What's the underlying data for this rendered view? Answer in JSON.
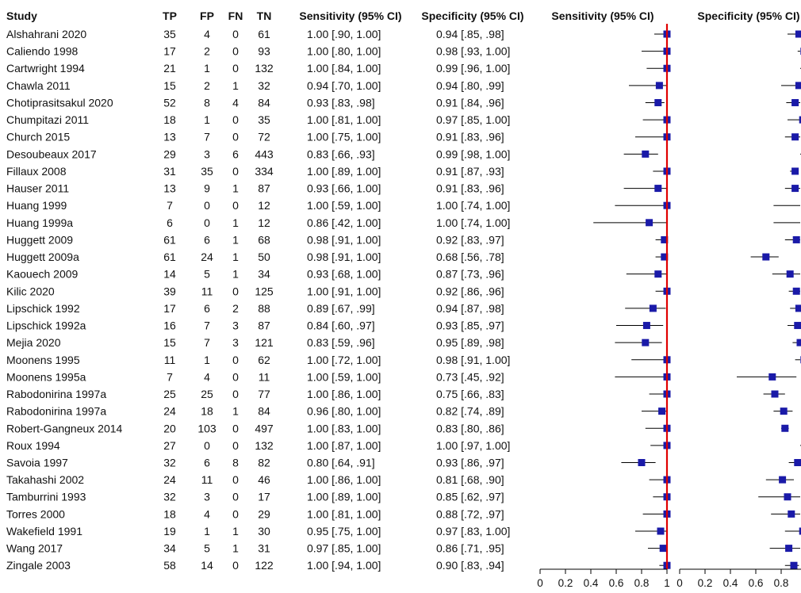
{
  "colors": {
    "marker": "#1a1aa8",
    "ci_line": "#000000",
    "ref_line": "#e00000",
    "axis": "#000000",
    "text": "#111111"
  },
  "table": {
    "headers": [
      "Study",
      "TP",
      "FP",
      "FN",
      "TN",
      "Sensitivity (95% CI)",
      "Specificity (95% CI)"
    ],
    "plot_headers": [
      "Sensitivity (95% CI)",
      "Specificity (95% CI)"
    ],
    "rows": [
      {
        "study": "Alshahrani 2020",
        "tp": "35",
        "fp": "4",
        "fn": "0",
        "tn": "61",
        "sens": "1.00 [.90, 1.00]",
        "spec": "0.94 [.85, .98]"
      },
      {
        "study": "Caliendo 1998",
        "tp": "17",
        "fp": "2",
        "fn": "0",
        "tn": "93",
        "sens": "1.00 [.80, 1.00]",
        "spec": "0.98 [.93, 1.00]"
      },
      {
        "study": "Cartwright 1994",
        "tp": "21",
        "fp": "1",
        "fn": "0",
        "tn": "132",
        "sens": "1.00 [.84, 1.00]",
        "spec": "0.99 [.96, 1.00]"
      },
      {
        "study": "Chawla 2011",
        "tp": "15",
        "fp": "2",
        "fn": "1",
        "tn": "32",
        "sens": "0.94 [.70, 1.00]",
        "spec": "0.94 [.80, .99]"
      },
      {
        "study": "Chotiprasitsakul 2020",
        "tp": "52",
        "fp": "8",
        "fn": "4",
        "tn": "84",
        "sens": "0.93 [.83, .98]",
        "spec": "0.91 [.84, .96]"
      },
      {
        "study": "Chumpitazi 2011",
        "tp": "18",
        "fp": "1",
        "fn": "0",
        "tn": "35",
        "sens": "1.00 [.81, 1.00]",
        "spec": "0.97 [.85, 1.00]"
      },
      {
        "study": "Church 2015",
        "tp": "13",
        "fp": "7",
        "fn": "0",
        "tn": "72",
        "sens": "1.00 [.75, 1.00]",
        "spec": "0.91 [.83, .96]"
      },
      {
        "study": "Desoubeaux 2017",
        "tp": "29",
        "fp": "3",
        "fn": "6",
        "tn": "443",
        "sens": "0.83 [.66, .93]",
        "spec": "0.99 [.98, 1.00]"
      },
      {
        "study": "Fillaux 2008",
        "tp": "31",
        "fp": "35",
        "fn": "0",
        "tn": "334",
        "sens": "1.00 [.89, 1.00]",
        "spec": "0.91 [.87, .93]"
      },
      {
        "study": "Hauser 2011",
        "tp": "13",
        "fp": "9",
        "fn": "1",
        "tn": "87",
        "sens": "0.93 [.66, 1.00]",
        "spec": "0.91 [.83, .96]"
      },
      {
        "study": "Huang 1999",
        "tp": "7",
        "fp": "0",
        "fn": "0",
        "tn": "12",
        "sens": "1.00 [.59, 1.00]",
        "spec": "1.00 [.74, 1.00]"
      },
      {
        "study": "Huang 1999a",
        "tp": "6",
        "fp": "0",
        "fn": "1",
        "tn": "12",
        "sens": "0.86 [.42, 1.00]",
        "spec": "1.00 [.74, 1.00]"
      },
      {
        "study": "Huggett 2009",
        "tp": "61",
        "fp": "6",
        "fn": "1",
        "tn": "68",
        "sens": "0.98 [.91, 1.00]",
        "spec": "0.92 [.83, .97]"
      },
      {
        "study": "Huggett 2009a",
        "tp": "61",
        "fp": "24",
        "fn": "1",
        "tn": "50",
        "sens": "0.98 [.91, 1.00]",
        "spec": "0.68 [.56, .78]"
      },
      {
        "study": "Kaouech 2009",
        "tp": "14",
        "fp": "5",
        "fn": "1",
        "tn": "34",
        "sens": "0.93 [.68, 1.00]",
        "spec": "0.87 [.73, .96]"
      },
      {
        "study": "Kilic 2020",
        "tp": "39",
        "fp": "11",
        "fn": "0",
        "tn": "125",
        "sens": "1.00 [.91, 1.00]",
        "spec": "0.92 [.86, .96]"
      },
      {
        "study": "Lipschick 1992",
        "tp": "17",
        "fp": "6",
        "fn": "2",
        "tn": "88",
        "sens": "0.89 [.67, .99]",
        "spec": "0.94 [.87, .98]"
      },
      {
        "study": "Lipschick 1992a",
        "tp": "16",
        "fp": "7",
        "fn": "3",
        "tn": "87",
        "sens": "0.84 [.60, .97]",
        "spec": "0.93 [.85, .97]"
      },
      {
        "study": "Mejia 2020",
        "tp": "15",
        "fp": "7",
        "fn": "3",
        "tn": "121",
        "sens": "0.83 [.59, .96]",
        "spec": "0.95 [.89, .98]"
      },
      {
        "study": "Moonens 1995",
        "tp": "11",
        "fp": "1",
        "fn": "0",
        "tn": "62",
        "sens": "1.00 [.72, 1.00]",
        "spec": "0.98 [.91, 1.00]"
      },
      {
        "study": "Moonens 1995a",
        "tp": "7",
        "fp": "4",
        "fn": "0",
        "tn": "11",
        "sens": "1.00 [.59, 1.00]",
        "spec": "0.73 [.45, .92]"
      },
      {
        "study": "Rabodonirina 1997a",
        "tp": "25",
        "fp": "25",
        "fn": "0",
        "tn": "77",
        "sens": "1.00 [.86, 1.00]",
        "spec": "0.75 [.66, .83]"
      },
      {
        "study": "Rabodonirina 1997a",
        "tp": "24",
        "fp": "18",
        "fn": "1",
        "tn": "84",
        "sens": "0.96 [.80, 1.00]",
        "spec": "0.82 [.74, .89]"
      },
      {
        "study": "Robert-Gangneux 2014",
        "tp": "20",
        "fp": "103",
        "fn": "0",
        "tn": "497",
        "sens": "1.00 [.83, 1.00]",
        "spec": "0.83 [.80, .86]"
      },
      {
        "study": "Roux 1994",
        "tp": "27",
        "fp": "0",
        "fn": "0",
        "tn": "132",
        "sens": "1.00 [.87, 1.00]",
        "spec": "1.00 [.97, 1.00]"
      },
      {
        "study": "Savoia 1997",
        "tp": "32",
        "fp": "6",
        "fn": "8",
        "tn": "82",
        "sens": "0.80 [.64, .91]",
        "spec": "0.93 [.86, .97]"
      },
      {
        "study": "Takahashi 2002",
        "tp": "24",
        "fp": "11",
        "fn": "0",
        "tn": "46",
        "sens": "1.00 [.86, 1.00]",
        "spec": "0.81 [.68, .90]"
      },
      {
        "study": "Tamburrini 1993",
        "tp": "32",
        "fp": "3",
        "fn": "0",
        "tn": "17",
        "sens": "1.00 [.89, 1.00]",
        "spec": "0.85 [.62, .97]"
      },
      {
        "study": "Torres 2000",
        "tp": "18",
        "fp": "4",
        "fn": "0",
        "tn": "29",
        "sens": "1.00 [.81, 1.00]",
        "spec": "0.88 [.72, .97]"
      },
      {
        "study": "Wakefield 1991",
        "tp": "19",
        "fp": "1",
        "fn": "1",
        "tn": "30",
        "sens": "0.95 [.75, 1.00]",
        "spec": "0.97 [.83, 1.00]"
      },
      {
        "study": "Wang 2017",
        "tp": "34",
        "fp": "5",
        "fn": "1",
        "tn": "31",
        "sens": "0.97 [.85, 1.00]",
        "spec": "0.86 [.71, .95]"
      },
      {
        "study": "Zingale 2003",
        "tp": "58",
        "fp": "14",
        "fn": "0",
        "tn": "122",
        "sens": "1.00 [.94, 1.00]",
        "spec": "0.90 [.83, .94]"
      }
    ]
  },
  "chart_data": [
    {
      "type": "forest",
      "title": "Sensitivity (95% CI)",
      "xlim": [
        0,
        1
      ],
      "xticks": [
        "0",
        "0.2",
        "0.4",
        "0.6",
        "0.8",
        "1"
      ],
      "reference_line": 1,
      "points": [
        {
          "label": "Alshahrani 2020",
          "est": 1.0,
          "lo": 0.9,
          "hi": 1.0
        },
        {
          "label": "Caliendo 1998",
          "est": 1.0,
          "lo": 0.8,
          "hi": 1.0
        },
        {
          "label": "Cartwright 1994",
          "est": 1.0,
          "lo": 0.84,
          "hi": 1.0
        },
        {
          "label": "Chawla 2011",
          "est": 0.94,
          "lo": 0.7,
          "hi": 1.0
        },
        {
          "label": "Chotiprasitsakul 2020",
          "est": 0.93,
          "lo": 0.83,
          "hi": 0.98
        },
        {
          "label": "Chumpitazi 2011",
          "est": 1.0,
          "lo": 0.81,
          "hi": 1.0
        },
        {
          "label": "Church 2015",
          "est": 1.0,
          "lo": 0.75,
          "hi": 1.0
        },
        {
          "label": "Desoubeaux 2017",
          "est": 0.83,
          "lo": 0.66,
          "hi": 0.93
        },
        {
          "label": "Fillaux 2008",
          "est": 1.0,
          "lo": 0.89,
          "hi": 1.0
        },
        {
          "label": "Hauser 2011",
          "est": 0.93,
          "lo": 0.66,
          "hi": 1.0
        },
        {
          "label": "Huang 1999",
          "est": 1.0,
          "lo": 0.59,
          "hi": 1.0
        },
        {
          "label": "Huang 1999a",
          "est": 0.86,
          "lo": 0.42,
          "hi": 1.0
        },
        {
          "label": "Huggett 2009",
          "est": 0.98,
          "lo": 0.91,
          "hi": 1.0
        },
        {
          "label": "Huggett 2009a",
          "est": 0.98,
          "lo": 0.91,
          "hi": 1.0
        },
        {
          "label": "Kaouech 2009",
          "est": 0.93,
          "lo": 0.68,
          "hi": 1.0
        },
        {
          "label": "Kilic 2020",
          "est": 1.0,
          "lo": 0.91,
          "hi": 1.0
        },
        {
          "label": "Lipschick 1992",
          "est": 0.89,
          "lo": 0.67,
          "hi": 0.99
        },
        {
          "label": "Lipschick 1992a",
          "est": 0.84,
          "lo": 0.6,
          "hi": 0.97
        },
        {
          "label": "Mejia 2020",
          "est": 0.83,
          "lo": 0.59,
          "hi": 0.96
        },
        {
          "label": "Moonens 1995",
          "est": 1.0,
          "lo": 0.72,
          "hi": 1.0
        },
        {
          "label": "Moonens 1995a",
          "est": 1.0,
          "lo": 0.59,
          "hi": 1.0
        },
        {
          "label": "Rabodonirina 1997a",
          "est": 1.0,
          "lo": 0.86,
          "hi": 1.0
        },
        {
          "label": "Rabodonirina 1997a",
          "est": 0.96,
          "lo": 0.8,
          "hi": 1.0
        },
        {
          "label": "Robert-Gangneux 2014",
          "est": 1.0,
          "lo": 0.83,
          "hi": 1.0
        },
        {
          "label": "Roux 1994",
          "est": 1.0,
          "lo": 0.87,
          "hi": 1.0
        },
        {
          "label": "Savoia 1997",
          "est": 0.8,
          "lo": 0.64,
          "hi": 0.91
        },
        {
          "label": "Takahashi 2002",
          "est": 1.0,
          "lo": 0.86,
          "hi": 1.0
        },
        {
          "label": "Tamburrini 1993",
          "est": 1.0,
          "lo": 0.89,
          "hi": 1.0
        },
        {
          "label": "Torres 2000",
          "est": 1.0,
          "lo": 0.81,
          "hi": 1.0
        },
        {
          "label": "Wakefield 1991",
          "est": 0.95,
          "lo": 0.75,
          "hi": 1.0
        },
        {
          "label": "Wang 2017",
          "est": 0.97,
          "lo": 0.85,
          "hi": 1.0
        },
        {
          "label": "Zingale 2003",
          "est": 1.0,
          "lo": 0.94,
          "hi": 1.0
        }
      ]
    },
    {
      "type": "forest",
      "title": "Specificity (95% CI)",
      "xlim": [
        0,
        1
      ],
      "xticks": [
        "0",
        "0.2",
        "0.4",
        "0.6",
        "0.8",
        "1"
      ],
      "points": [
        {
          "label": "Alshahrani 2020",
          "est": 0.94,
          "lo": 0.85,
          "hi": 0.98
        },
        {
          "label": "Caliendo 1998",
          "est": 0.98,
          "lo": 0.93,
          "hi": 1.0
        },
        {
          "label": "Cartwright 1994",
          "est": 0.99,
          "lo": 0.96,
          "hi": 1.0
        },
        {
          "label": "Chawla 2011",
          "est": 0.94,
          "lo": 0.8,
          "hi": 0.99
        },
        {
          "label": "Chotiprasitsakul 2020",
          "est": 0.91,
          "lo": 0.84,
          "hi": 0.96
        },
        {
          "label": "Chumpitazi 2011",
          "est": 0.97,
          "lo": 0.85,
          "hi": 1.0
        },
        {
          "label": "Church 2015",
          "est": 0.91,
          "lo": 0.83,
          "hi": 0.96
        },
        {
          "label": "Desoubeaux 2017",
          "est": 0.99,
          "lo": 0.98,
          "hi": 1.0
        },
        {
          "label": "Fillaux 2008",
          "est": 0.91,
          "lo": 0.87,
          "hi": 0.93
        },
        {
          "label": "Hauser 2011",
          "est": 0.91,
          "lo": 0.83,
          "hi": 0.96
        },
        {
          "label": "Huang 1999",
          "est": 1.0,
          "lo": 0.74,
          "hi": 1.0
        },
        {
          "label": "Huang 1999a",
          "est": 1.0,
          "lo": 0.74,
          "hi": 1.0
        },
        {
          "label": "Huggett 2009",
          "est": 0.92,
          "lo": 0.83,
          "hi": 0.97
        },
        {
          "label": "Huggett 2009a",
          "est": 0.68,
          "lo": 0.56,
          "hi": 0.78
        },
        {
          "label": "Kaouech 2009",
          "est": 0.87,
          "lo": 0.73,
          "hi": 0.96
        },
        {
          "label": "Kilic 2020",
          "est": 0.92,
          "lo": 0.86,
          "hi": 0.96
        },
        {
          "label": "Lipschick 1992",
          "est": 0.94,
          "lo": 0.87,
          "hi": 0.98
        },
        {
          "label": "Lipschick 1992a",
          "est": 0.93,
          "lo": 0.85,
          "hi": 0.97
        },
        {
          "label": "Mejia 2020",
          "est": 0.95,
          "lo": 0.89,
          "hi": 0.98
        },
        {
          "label": "Moonens 1995",
          "est": 0.98,
          "lo": 0.91,
          "hi": 1.0
        },
        {
          "label": "Moonens 1995a",
          "est": 0.73,
          "lo": 0.45,
          "hi": 0.92
        },
        {
          "label": "Rabodonirina 1997a",
          "est": 0.75,
          "lo": 0.66,
          "hi": 0.83
        },
        {
          "label": "Rabodonirina 1997a",
          "est": 0.82,
          "lo": 0.74,
          "hi": 0.89
        },
        {
          "label": "Robert-Gangneux 2014",
          "est": 0.83,
          "lo": 0.8,
          "hi": 0.86
        },
        {
          "label": "Roux 1994",
          "est": 1.0,
          "lo": 0.97,
          "hi": 1.0
        },
        {
          "label": "Savoia 1997",
          "est": 0.93,
          "lo": 0.86,
          "hi": 0.97
        },
        {
          "label": "Takahashi 2002",
          "est": 0.81,
          "lo": 0.68,
          "hi": 0.9
        },
        {
          "label": "Tamburrini 1993",
          "est": 0.85,
          "lo": 0.62,
          "hi": 0.97
        },
        {
          "label": "Torres 2000",
          "est": 0.88,
          "lo": 0.72,
          "hi": 0.97
        },
        {
          "label": "Wakefield 1991",
          "est": 0.97,
          "lo": 0.83,
          "hi": 1.0
        },
        {
          "label": "Wang 2017",
          "est": 0.86,
          "lo": 0.71,
          "hi": 0.95
        },
        {
          "label": "Zingale 2003",
          "est": 0.9,
          "lo": 0.83,
          "hi": 0.94
        }
      ]
    }
  ]
}
